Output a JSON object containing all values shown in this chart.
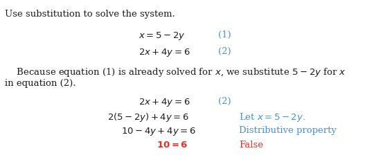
{
  "bg_color": "#ffffff",
  "black": "#1c1c1c",
  "blue": "#4a90d9",
  "red": "#e8302a",
  "figsize": [
    5.27,
    2.34
  ],
  "dpi": 100
}
